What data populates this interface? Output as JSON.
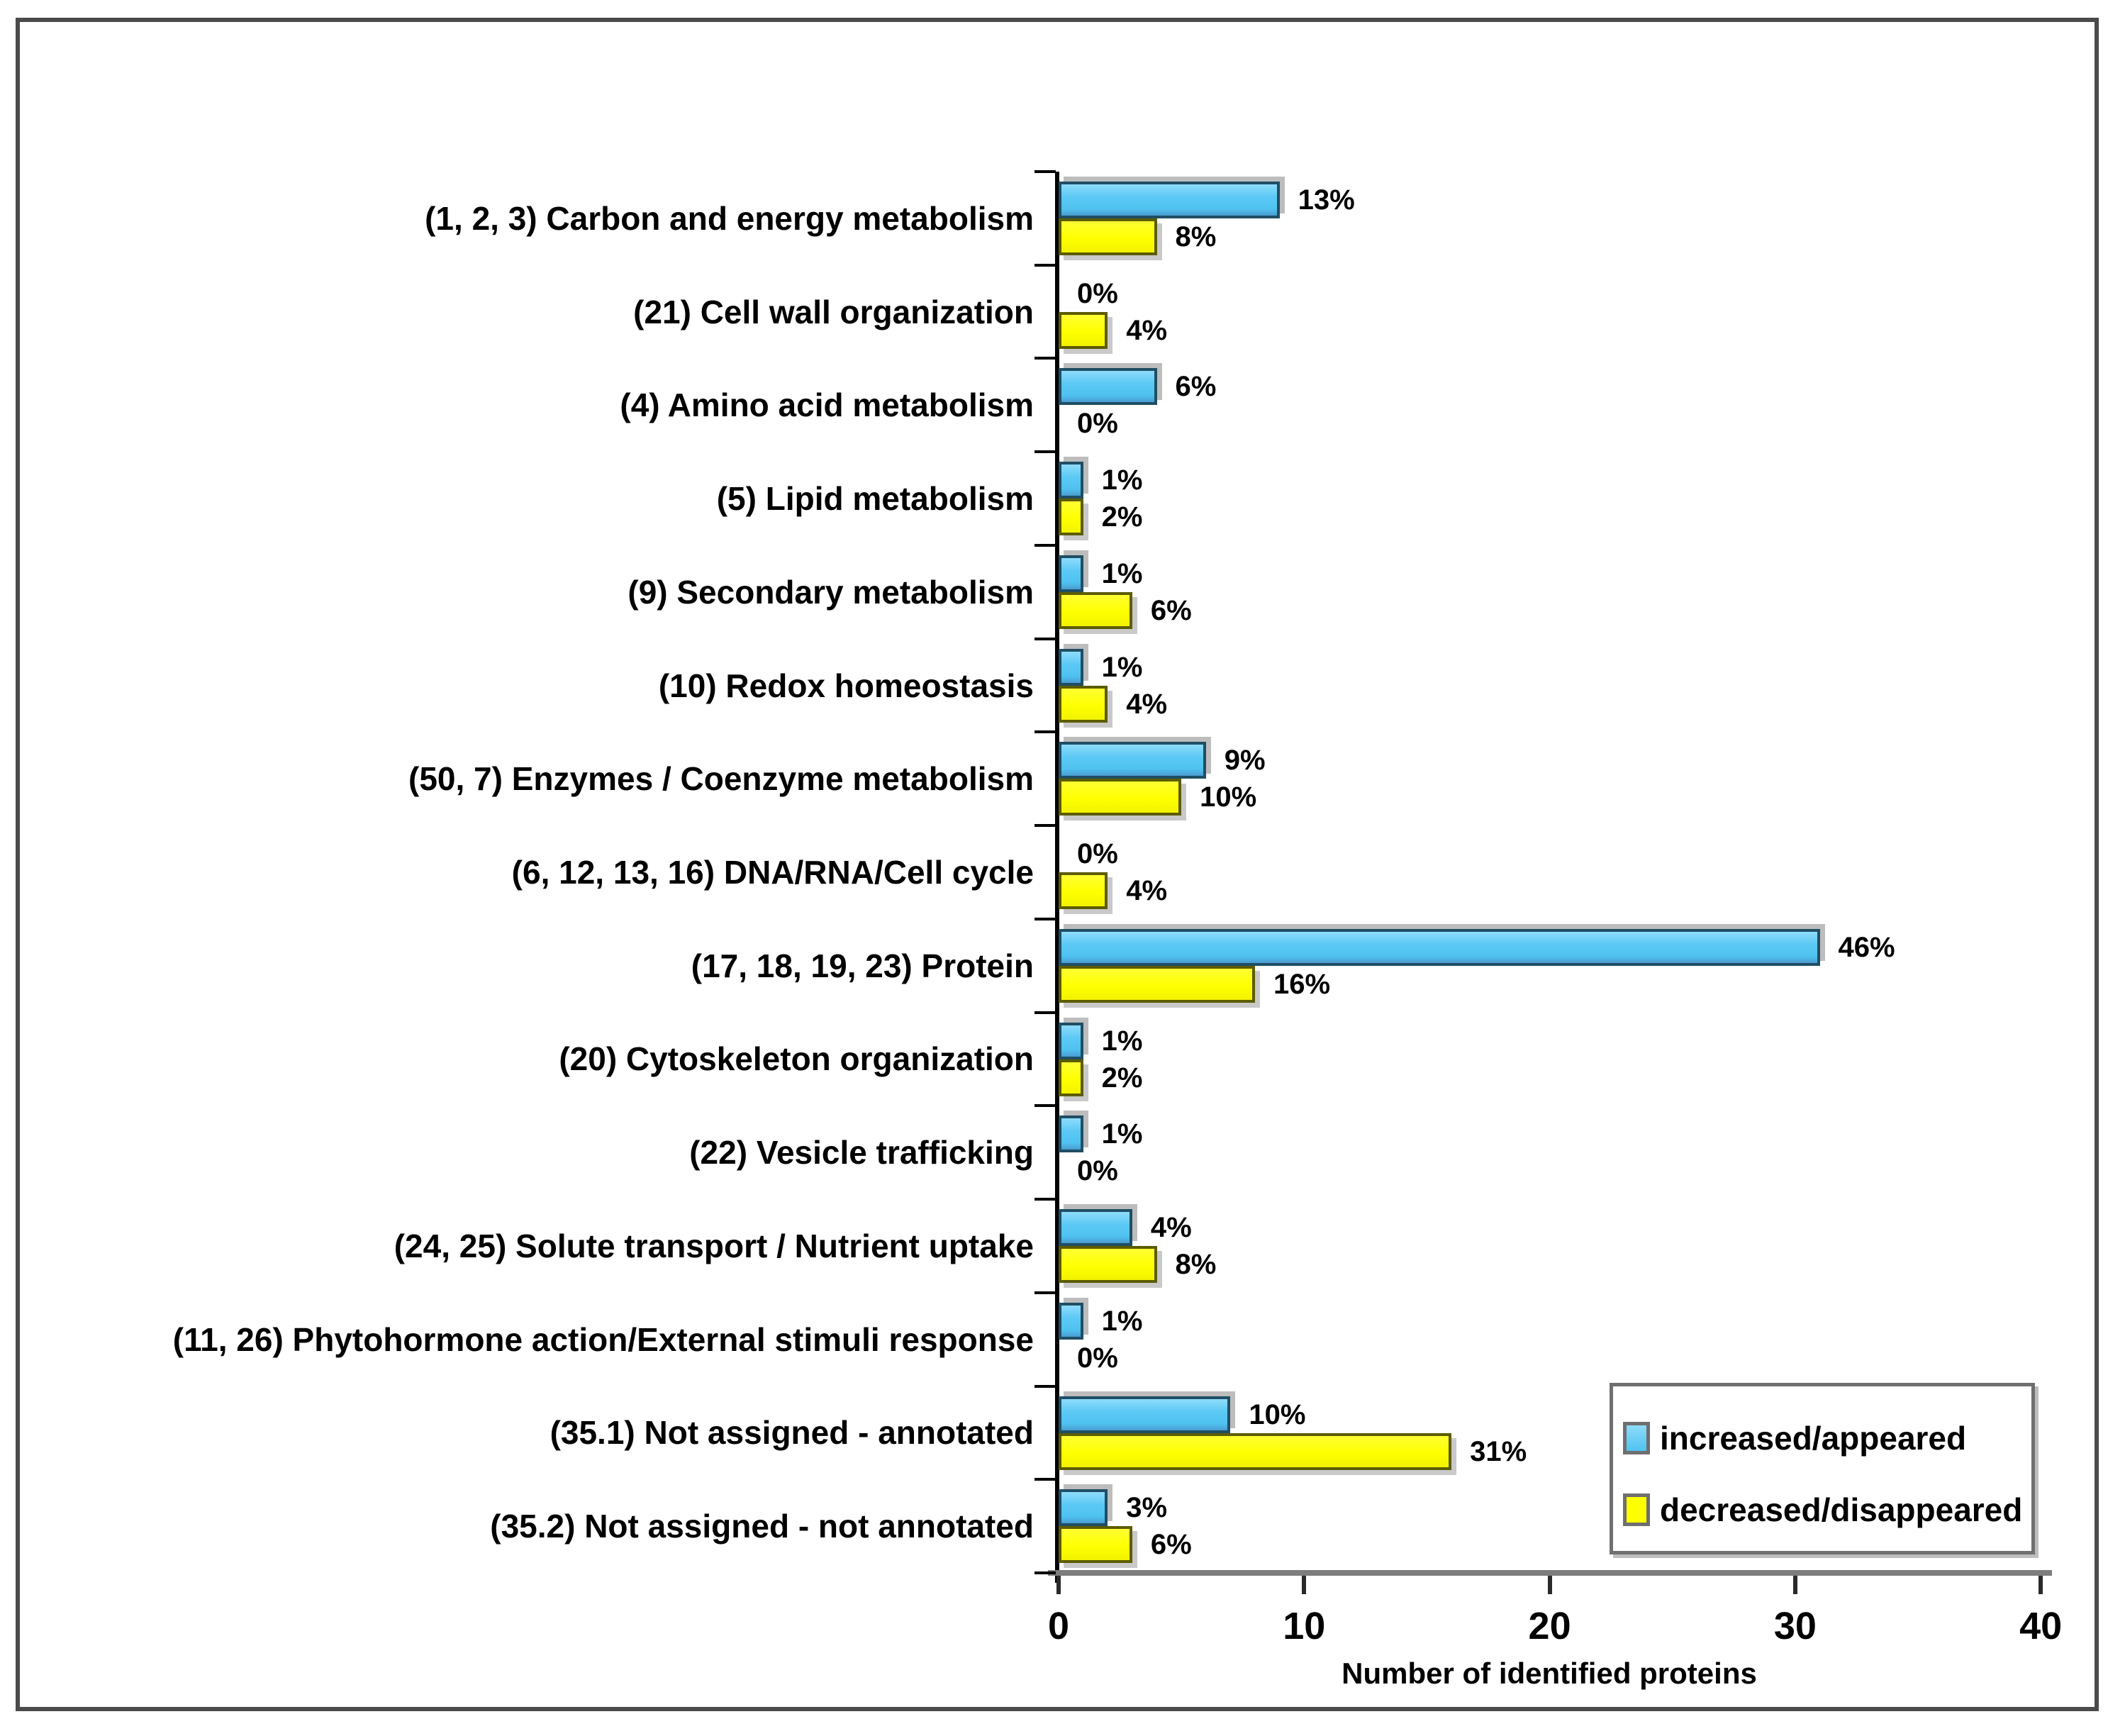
{
  "chart_data": {
    "type": "bar",
    "orientation": "horizontal",
    "title": "",
    "xlabel": "Number of identified proteins",
    "ylabel": "",
    "xlim": [
      0,
      40
    ],
    "xticks": [
      "0",
      "10",
      "20",
      "30",
      "40"
    ],
    "grid": false,
    "legend_position": "inside-bottom-right",
    "categories": [
      "(1, 2, 3) Carbon and energy metabolism",
      "(21) Cell wall organization",
      "(4) Amino acid metabolism",
      "(5) Lipid metabolism",
      "(9) Secondary metabolism",
      "(10) Redox homeostasis",
      "(50, 7) Enzymes / Coenzyme metabolism",
      "(6, 12, 13, 16) DNA/RNA/Cell cycle",
      "(17, 18, 19, 23) Protein",
      "(20) Cytoskeleton organization",
      "(22) Vesicle trafficking",
      "(24, 25) Solute transport / Nutrient uptake",
      "(11, 26) Phytohormone action/External stimuli response",
      "(35.1) Not assigned - annotated",
      "(35.2) Not assigned - not annotated"
    ],
    "series": [
      {
        "name": "increased/appeared",
        "color": "#5cc9f5",
        "values": [
          9,
          0,
          4,
          1,
          1,
          1,
          6,
          0,
          31,
          1,
          1,
          3,
          1,
          7,
          2
        ],
        "percent_labels": [
          "13%",
          "0%",
          "6%",
          "1%",
          "1%",
          "1%",
          "9%",
          "0%",
          "46%",
          "1%",
          "1%",
          "4%",
          "1%",
          "10%",
          "3%"
        ]
      },
      {
        "name": "decreased/disappeared",
        "color": "#ffff00",
        "values": [
          4,
          2,
          0,
          1,
          3,
          2,
          5,
          2,
          8,
          1,
          0,
          4,
          0,
          16,
          3
        ],
        "percent_labels": [
          "8%",
          "4%",
          "0%",
          "2%",
          "6%",
          "4%",
          "10%",
          "4%",
          "16%",
          "2%",
          "0%",
          "8%",
          "0%",
          "31%",
          "6%"
        ]
      }
    ]
  },
  "axis": {
    "title": "Number of identified proteins",
    "tick_labels": [
      "0",
      "10",
      "20",
      "30",
      "40"
    ]
  },
  "legend": {
    "items": [
      {
        "label": "increased/appeared",
        "color": "#5cc9f5"
      },
      {
        "label": "decreased/disappeared",
        "color": "#ffff00"
      }
    ]
  },
  "colors": {
    "increased": "#5cc9f5",
    "decreased": "#ffff00",
    "blue_border": "#1f4e64",
    "yellow_border": "#5c5c00",
    "x_axis_line": "#7d7d7d",
    "y_axis_line": "#000000",
    "frame": "#4a4a4a"
  }
}
